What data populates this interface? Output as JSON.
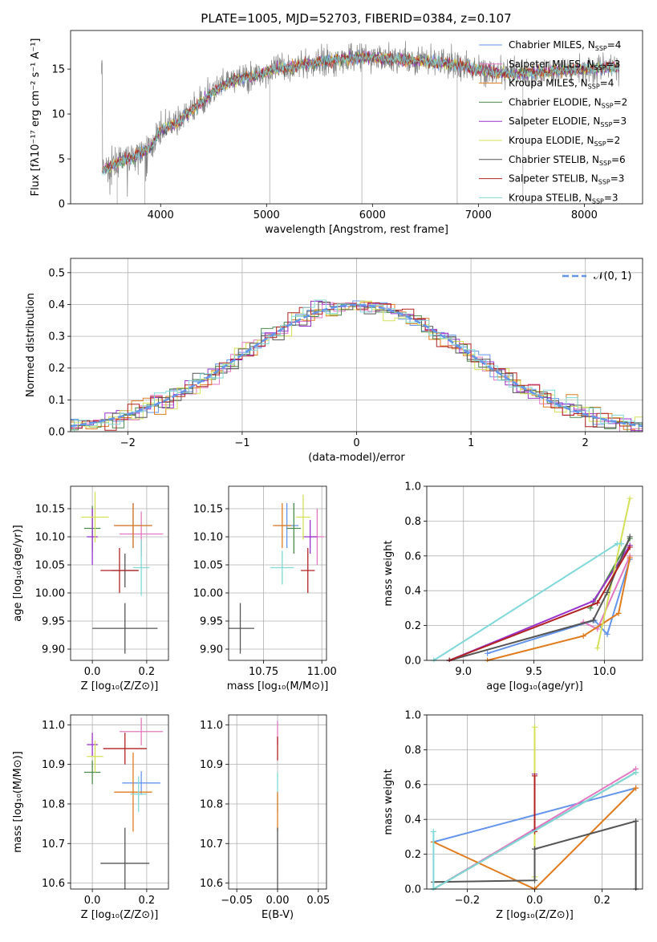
{
  "figure": {
    "title": "PLATE=1005, MJD=52703, FIBERID=0384, z=0.107"
  },
  "chart_data": [
    {
      "id": "spectrum",
      "type": "line",
      "xlabel": "wavelength [Angstrom, rest frame]",
      "ylabel": "Flux [fλ10⁻¹⁷ erg cm⁻² s⁻¹ A⁻¹]",
      "xlim": [
        3150,
        8550
      ],
      "ylim": [
        0,
        19.3
      ],
      "xticks": [
        4000,
        5000,
        6000,
        7000,
        8000
      ],
      "yticks": [
        0,
        5,
        10,
        15
      ],
      "grid": false,
      "legend_position": "right",
      "legend": [
        {
          "name": "Chabrier MILES, N",
          "sub": "SSP",
          "tail": "=4",
          "color": "#6495ed"
        },
        {
          "name": "Salpeter MILES, N",
          "sub": "SSP",
          "tail": "=3",
          "color": "#e377c2"
        },
        {
          "name": "Kroupa MILES, N",
          "sub": "SSP",
          "tail": "=4",
          "color": "#e07b1e"
        },
        {
          "name": "Chabrier ELODIE, N",
          "sub": "SSP",
          "tail": "=2",
          "color": "#4d8a4d"
        },
        {
          "name": "Salpeter ELODIE, N",
          "sub": "SSP",
          "tail": "=3",
          "color": "#9932cc"
        },
        {
          "name": "Kroupa ELODIE, N",
          "sub": "SSP",
          "tail": "=2",
          "color": "#d4e157"
        },
        {
          "name": "Chabrier STELIB, N",
          "sub": "SSP",
          "tail": "=6",
          "color": "#555555"
        },
        {
          "name": "Salpeter STELIB, N",
          "sub": "SSP",
          "tail": "=3",
          "color": "#b22222"
        },
        {
          "name": "Kroupa STELIB, N",
          "sub": "SSP",
          "tail": "=3",
          "color": "#80d8d8"
        }
      ],
      "continuum": [
        [
          3450,
          3.8
        ],
        [
          3600,
          4.6
        ],
        [
          3750,
          5.3
        ],
        [
          3900,
          6.2
        ],
        [
          4000,
          8.2
        ],
        [
          4150,
          9.0
        ],
        [
          4300,
          10.5
        ],
        [
          4500,
          12.5
        ],
        [
          4700,
          13.8
        ],
        [
          4900,
          14.3
        ],
        [
          5100,
          15.0
        ],
        [
          5300,
          15.4
        ],
        [
          5500,
          15.8
        ],
        [
          5700,
          16.1
        ],
        [
          5900,
          16.3
        ],
        [
          6100,
          16.2
        ],
        [
          6300,
          16.0
        ],
        [
          6500,
          15.9
        ],
        [
          6700,
          15.6
        ],
        [
          6900,
          15.2
        ],
        [
          7100,
          14.8
        ],
        [
          7300,
          14.4
        ],
        [
          7500,
          14.6
        ],
        [
          7800,
          14.9
        ],
        [
          8000,
          15.0
        ],
        [
          8300,
          15.2
        ]
      ]
    },
    {
      "id": "residuals",
      "type": "step",
      "xlabel": "(data-model)/error",
      "ylabel": "Normed distribution",
      "xlim": [
        -2.5,
        2.5
      ],
      "ylim": [
        0,
        0.545
      ],
      "xticks": [
        -2,
        -1,
        0,
        1,
        2
      ],
      "yticks": [
        0.0,
        0.1,
        0.2,
        0.3,
        0.4,
        0.5
      ],
      "grid": true,
      "gaussian_label": "𝒩(0, 1)",
      "gaussian_color": "#6495ed",
      "legend_position": "top-right",
      "bin_width": 0.1
    },
    {
      "id": "age-vs-Z",
      "type": "errorbar",
      "xlabel": "Z [log₁₀(Z/Z⊙)]",
      "ylabel": "age  [log₁₀(age/yr)]",
      "xlim": [
        -0.08,
        0.28
      ],
      "ylim": [
        9.88,
        10.19
      ],
      "xticks": [
        0.0,
        0.2
      ],
      "yticks": [
        9.9,
        9.95,
        10.0,
        10.05,
        10.1,
        10.15
      ],
      "grid": true,
      "points": [
        {
          "color": "#6495ed",
          "x": 0.15,
          "xerr": 0.07,
          "y": 10.12,
          "yerr": 0.04
        },
        {
          "color": "#e377c2",
          "x": 0.18,
          "xerr": 0.08,
          "y": 10.105,
          "yerr": 0.04
        },
        {
          "color": "#e07b1e",
          "x": 0.15,
          "xerr": 0.07,
          "y": 10.12,
          "yerr": 0.04
        },
        {
          "color": "#4d8a4d",
          "x": 0.0,
          "xerr": 0.03,
          "y": 10.115,
          "yerr": 0.04
        },
        {
          "color": "#9932cc",
          "x": 0.0,
          "xerr": 0.02,
          "y": 10.1,
          "yerr": 0.05
        },
        {
          "color": "#d4e157",
          "x": 0.01,
          "xerr": 0.05,
          "y": 10.135,
          "yerr": 0.045
        },
        {
          "color": "#555555",
          "x": 0.12,
          "xerr": 0.12,
          "y": 9.937,
          "yerr": 0.045
        },
        {
          "color": "#555555",
          "x": 0.12,
          "xerr": 0.05,
          "y": 10.04,
          "yerr": 0.03
        },
        {
          "color": "#b22222",
          "x": 0.1,
          "xerr": 0.07,
          "y": 10.04,
          "yerr": 0.04
        },
        {
          "color": "#80d8d8",
          "x": 0.18,
          "xerr": 0.03,
          "y": 10.045,
          "yerr": 0.05
        }
      ]
    },
    {
      "id": "age-vs-mass",
      "type": "errorbar",
      "xlabel": "mass [log₁₀(M/M⊙)]",
      "ylabel": "",
      "xlim": [
        10.6,
        11.02
      ],
      "ylim": [
        9.88,
        10.19
      ],
      "xticks": [
        10.75,
        11.0
      ],
      "yticks": [
        9.9,
        9.95,
        10.0,
        10.05,
        10.1,
        10.15
      ],
      "grid": true,
      "points": [
        {
          "color": "#6495ed",
          "x": 10.85,
          "xerr": 0.05,
          "y": 10.12,
          "yerr": 0.04
        },
        {
          "color": "#e377c2",
          "x": 10.98,
          "xerr": 0.03,
          "y": 10.1,
          "yerr": 0.05
        },
        {
          "color": "#e07b1e",
          "x": 10.83,
          "xerr": 0.04,
          "y": 10.12,
          "yerr": 0.04
        },
        {
          "color": "#4d8a4d",
          "x": 10.88,
          "xerr": 0.03,
          "y": 10.115,
          "yerr": 0.045
        },
        {
          "color": "#9932cc",
          "x": 10.95,
          "xerr": 0.03,
          "y": 10.1,
          "yerr": 0.03
        },
        {
          "color": "#d4e157",
          "x": 10.92,
          "xerr": 0.03,
          "y": 10.135,
          "yerr": 0.04
        },
        {
          "color": "#555555",
          "x": 10.65,
          "xerr": 0.06,
          "y": 9.937,
          "yerr": 0.045
        },
        {
          "color": "#b22222",
          "x": 10.94,
          "xerr": 0.03,
          "y": 10.04,
          "yerr": 0.04
        },
        {
          "color": "#80d8d8",
          "x": 10.83,
          "xerr": 0.05,
          "y": 10.045,
          "yerr": 0.03
        }
      ]
    },
    {
      "id": "weight-vs-age",
      "type": "line",
      "xlabel": "age  [log₁₀(age/yr)]",
      "ylabel": "mass weight",
      "xlim": [
        8.74,
        10.27
      ],
      "ylim": [
        0,
        1.0
      ],
      "xticks": [
        9.0,
        9.5,
        10.0
      ],
      "yticks": [
        0.0,
        0.2,
        0.4,
        0.6,
        0.8,
        1.0
      ],
      "grid": true,
      "series": [
        {
          "color": "#6495ed",
          "x": [
            9.17,
            9.93,
            10.02,
            10.18
          ],
          "y": [
            0.04,
            0.23,
            0.15,
            0.58
          ]
        },
        {
          "color": "#e377c2",
          "x": [
            9.85,
            9.95,
            10.18
          ],
          "y": [
            0.22,
            0.18,
            0.6
          ]
        },
        {
          "color": "#e07b1e",
          "x": [
            9.17,
            9.85,
            10.1,
            10.18
          ],
          "y": [
            0.0,
            0.14,
            0.27,
            0.59
          ]
        },
        {
          "color": "#4d8a4d",
          "x": [
            9.9,
            10.18
          ],
          "y": [
            0.3,
            0.7
          ]
        },
        {
          "color": "#9932cc",
          "x": [
            8.9,
            9.92,
            10.18
          ],
          "y": [
            0.0,
            0.34,
            0.66
          ]
        },
        {
          "color": "#d4e157",
          "x": [
            9.95,
            10.18
          ],
          "y": [
            0.07,
            0.93
          ]
        },
        {
          "color": "#555555",
          "x": [
            8.9,
            9.92,
            10.02,
            10.18
          ],
          "y": [
            0.0,
            0.23,
            0.39,
            0.71
          ]
        },
        {
          "color": "#b22222",
          "x": [
            8.9,
            9.95,
            10.18
          ],
          "y": [
            0.0,
            0.33,
            0.65
          ]
        },
        {
          "color": "#80d8d8",
          "x": [
            8.79,
            10.09,
            10.12
          ],
          "y": [
            0.0,
            0.67,
            0.67
          ]
        }
      ]
    },
    {
      "id": "mass-vs-Z",
      "type": "errorbar",
      "xlabel": "Z [log₁₀(Z/Z⊙)]",
      "ylabel": "mass [log₁₀(M/M⊙)]",
      "xlim": [
        -0.08,
        0.28
      ],
      "ylim": [
        10.585,
        11.025
      ],
      "xticks": [
        0.0,
        0.2
      ],
      "yticks": [
        10.6,
        10.7,
        10.8,
        10.9,
        11.0
      ],
      "grid": true,
      "points": [
        {
          "color": "#6495ed",
          "x": 0.18,
          "xerr": 0.07,
          "y": 10.853,
          "yerr": 0.03
        },
        {
          "color": "#e377c2",
          "x": 0.18,
          "xerr": 0.08,
          "y": 10.983,
          "yerr": 0.035
        },
        {
          "color": "#e07b1e",
          "x": 0.15,
          "xerr": 0.07,
          "y": 10.83,
          "yerr": 0.1
        },
        {
          "color": "#4d8a4d",
          "x": 0.0,
          "xerr": 0.03,
          "y": 10.88,
          "yerr": 0.03
        },
        {
          "color": "#9932cc",
          "x": 0.0,
          "xerr": 0.02,
          "y": 10.95,
          "yerr": 0.03
        },
        {
          "color": "#d4e157",
          "x": 0.01,
          "xerr": 0.03,
          "y": 10.92,
          "yerr": 0.04
        },
        {
          "color": "#555555",
          "x": 0.12,
          "xerr": 0.09,
          "y": 10.65,
          "yerr": 0.09
        },
        {
          "color": "#b22222",
          "x": 0.12,
          "xerr": 0.08,
          "y": 10.94,
          "yerr": 0.04
        },
        {
          "color": "#80d8d8",
          "x": 0.17,
          "xerr": 0.03,
          "y": 10.825,
          "yerr": 0.045
        }
      ]
    },
    {
      "id": "mass-vs-EBV",
      "type": "errorbar",
      "xlabel": "E(B-V)",
      "ylabel": "",
      "xlim": [
        -0.06,
        0.06
      ],
      "ylim": [
        10.585,
        11.025
      ],
      "xticks": [
        -0.05,
        0.0,
        0.05
      ],
      "yticks": [
        10.6,
        10.7,
        10.8,
        10.9,
        11.0
      ],
      "grid": true,
      "points": [
        {
          "color": "#e377c2",
          "x": 0.0,
          "xerr": 0.0,
          "y": 10.98,
          "yerr": 0.03
        },
        {
          "color": "#b22222",
          "x": 0.0,
          "xerr": 0.0,
          "y": 10.94,
          "yerr": 0.03
        },
        {
          "color": "#80d8d8",
          "x": 0.0,
          "xerr": 0.0,
          "y": 10.83,
          "yerr": 0.05
        },
        {
          "color": "#e07b1e",
          "x": 0.0,
          "xerr": 0.0,
          "y": 10.78,
          "yerr": 0.05
        },
        {
          "color": "#555555",
          "x": 0.0,
          "xerr": 0.0,
          "y": 10.65,
          "yerr": 0.09
        }
      ]
    },
    {
      "id": "weight-vs-Z",
      "type": "line",
      "xlabel": "Z [log₁₀(Z/Z⊙)]",
      "ylabel": "mass weight",
      "xlim": [
        -0.32,
        0.32
      ],
      "ylim": [
        0,
        1.0
      ],
      "xticks": [
        -0.2,
        0.0,
        0.2
      ],
      "yticks": [
        0.0,
        0.2,
        0.4,
        0.6,
        0.8,
        1.0
      ],
      "grid": true,
      "series": [
        {
          "color": "#6495ed",
          "x": [
            -0.3,
            0.3
          ],
          "y": [
            0.27,
            0.58
          ]
        },
        {
          "color": "#e377c2",
          "x": [
            -0.3,
            0.3
          ],
          "y": [
            0.0,
            0.69
          ]
        },
        {
          "color": "#e07b1e",
          "x": [
            -0.3,
            0.0,
            0.3
          ],
          "y": [
            0.27,
            0.0,
            0.58
          ]
        },
        {
          "color": "#4d8a4d",
          "x": [
            -0.3,
            0.3
          ],
          "y": [
            0.0,
            0.67
          ]
        },
        {
          "color": "#9932cc",
          "x": [
            0.0,
            0.0
          ],
          "y": [
            0.34,
            0.66
          ]
        },
        {
          "color": "#d4e157",
          "x": [
            0.0,
            0.0
          ],
          "y": [
            0.07,
            0.93
          ]
        },
        {
          "color": "#555555",
          "x": [
            -0.3,
            0.0,
            0.0,
            0.3,
            0.3
          ],
          "y": [
            0.04,
            0.05,
            0.23,
            0.39,
            0.0
          ]
        },
        {
          "color": "#b22222",
          "x": [
            0.0,
            0.0
          ],
          "y": [
            0.33,
            0.65
          ]
        },
        {
          "color": "#80d8d8",
          "x": [
            -0.3,
            -0.3,
            0.3
          ],
          "y": [
            0.33,
            0.0,
            0.67
          ]
        }
      ]
    }
  ]
}
